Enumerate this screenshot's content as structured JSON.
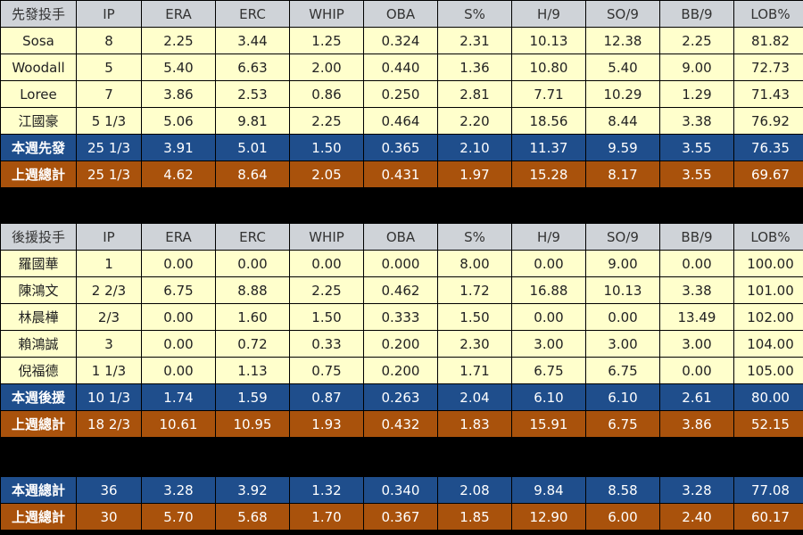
{
  "colors": {
    "header_bg": "#cfd3d8",
    "player_row_bg": "#ffffcc",
    "this_week_bg": "#1f4e8c",
    "last_week_bg": "#a9520c",
    "separator": "#000000"
  },
  "starters": {
    "header": [
      "先發投手",
      "IP",
      "ERA",
      "ERC",
      "WHIP",
      "OBA",
      "S%",
      "H/9",
      "SO/9",
      "BB/9",
      "LOB%"
    ],
    "players": [
      [
        "Sosa",
        "8",
        "2.25",
        "3.44",
        "1.25",
        "0.324",
        "2.31",
        "10.13",
        "12.38",
        "2.25",
        "81.82"
      ],
      [
        "Woodall",
        "5",
        "5.40",
        "6.63",
        "2.00",
        "0.440",
        "1.36",
        "10.80",
        "5.40",
        "9.00",
        "72.73"
      ],
      [
        "Loree",
        "7",
        "3.86",
        "2.53",
        "0.86",
        "0.250",
        "2.81",
        "7.71",
        "10.29",
        "1.29",
        "71.43"
      ],
      [
        "江國豪",
        "5 1/3",
        "5.06",
        "9.81",
        "2.25",
        "0.464",
        "2.20",
        "18.56",
        "8.44",
        "3.38",
        "76.92"
      ]
    ],
    "this_week": [
      "本週先發",
      "25 1/3",
      "3.91",
      "5.01",
      "1.50",
      "0.365",
      "2.10",
      "11.37",
      "9.59",
      "3.55",
      "76.35"
    ],
    "last_week": [
      "上週總計",
      "25 1/3",
      "4.62",
      "8.64",
      "2.05",
      "0.431",
      "1.97",
      "15.28",
      "8.17",
      "3.55",
      "69.67"
    ]
  },
  "relievers": {
    "header": [
      "後援投手",
      "IP",
      "ERA",
      "ERC",
      "WHIP",
      "OBA",
      "S%",
      "H/9",
      "SO/9",
      "BB/9",
      "LOB%"
    ],
    "players": [
      [
        "羅國華",
        "1",
        "0.00",
        "0.00",
        "0.00",
        "0.000",
        "8.00",
        "0.00",
        "9.00",
        "0.00",
        "100.00"
      ],
      [
        "陳鴻文",
        "2 2/3",
        "6.75",
        "8.88",
        "2.25",
        "0.462",
        "1.72",
        "16.88",
        "10.13",
        "3.38",
        "101.00"
      ],
      [
        "林晨樺",
        "2/3",
        "0.00",
        "1.60",
        "1.50",
        "0.333",
        "1.50",
        "0.00",
        "0.00",
        "13.49",
        "102.00"
      ],
      [
        "賴鴻誠",
        "3",
        "0.00",
        "0.72",
        "0.33",
        "0.200",
        "2.30",
        "3.00",
        "3.00",
        "3.00",
        "104.00"
      ],
      [
        "倪福德",
        "1 1/3",
        "0.00",
        "1.13",
        "0.75",
        "0.200",
        "1.71",
        "6.75",
        "6.75",
        "0.00",
        "105.00"
      ]
    ],
    "this_week": [
      "本週後援",
      "10 1/3",
      "1.74",
      "1.59",
      "0.87",
      "0.263",
      "2.04",
      "6.10",
      "6.10",
      "2.61",
      "80.00"
    ],
    "last_week": [
      "上週總計",
      "18 2/3",
      "10.61",
      "10.95",
      "1.93",
      "0.432",
      "1.83",
      "15.91",
      "6.75",
      "3.86",
      "52.15"
    ]
  },
  "totals": {
    "this_week": [
      "本週總計",
      "36",
      "3.28",
      "3.92",
      "1.32",
      "0.340",
      "2.08",
      "9.84",
      "8.58",
      "3.28",
      "77.08"
    ],
    "last_week": [
      "上週總計",
      "30",
      "5.70",
      "5.68",
      "1.70",
      "0.367",
      "1.85",
      "12.90",
      "6.00",
      "2.40",
      "60.17"
    ]
  }
}
